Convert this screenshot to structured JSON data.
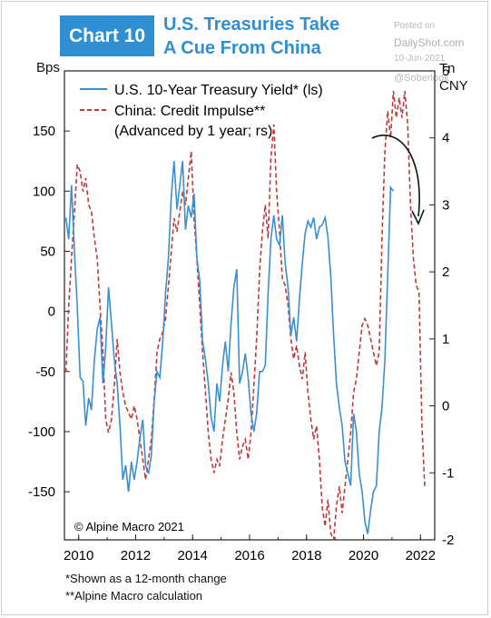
{
  "header": {
    "chart_number": "Chart 10",
    "title_lines": [
      "U.S. Treasuries Take",
      "A Cue From China"
    ]
  },
  "watermark": {
    "posted": "Posted on",
    "site": "DailyShot.com",
    "date": "10-Jun-2021",
    "handle": "@Soberlook"
  },
  "footnotes": [
    "*Shown as a 12-month change",
    "**Alpine Macro calculation"
  ],
  "chart_data": {
    "type": "line",
    "source_note": "© Alpine Macro 2021",
    "y_left_label": "Bps",
    "y_right_label_lines": [
      "Tn",
      "CNY"
    ],
    "x_ticks": [
      "2010",
      "2012",
      "2014",
      "2016",
      "2018",
      "2020",
      "2022"
    ],
    "x_range": [
      2009.5,
      2022.5
    ],
    "y_left_range": [
      -190,
      200
    ],
    "y_left_ticks": [
      150,
      100,
      50,
      0,
      -50,
      -100,
      -150
    ],
    "y_right_range": [
      -2,
      5
    ],
    "y_right_ticks": [
      5,
      4,
      3,
      2,
      1,
      0,
      -1,
      -2
    ],
    "legend_position": "top-left",
    "annotation": "curved arrow pointing down at the China credit impulse peak",
    "series": [
      {
        "name": "U.S. 10-Year Treasury Yield* (ls)",
        "axis": "left",
        "color": "#3b8fd0",
        "style": "solid",
        "points": [
          [
            2009.55,
            78
          ],
          [
            2009.65,
            60
          ],
          [
            2009.75,
            105
          ],
          [
            2009.85,
            50
          ],
          [
            2009.95,
            5
          ],
          [
            2010.05,
            -55
          ],
          [
            2010.15,
            -58
          ],
          [
            2010.25,
            -95
          ],
          [
            2010.35,
            -72
          ],
          [
            2010.45,
            -82
          ],
          [
            2010.55,
            -40
          ],
          [
            2010.65,
            -15
          ],
          [
            2010.75,
            -5
          ],
          [
            2010.85,
            -60
          ],
          [
            2010.95,
            -30
          ],
          [
            2011.05,
            20
          ],
          [
            2011.15,
            -10
          ],
          [
            2011.25,
            -40
          ],
          [
            2011.35,
            -60
          ],
          [
            2011.45,
            -95
          ],
          [
            2011.55,
            -140
          ],
          [
            2011.65,
            -128
          ],
          [
            2011.75,
            -150
          ],
          [
            2011.85,
            -125
          ],
          [
            2011.95,
            -140
          ],
          [
            2012.05,
            -125
          ],
          [
            2012.15,
            -105
          ],
          [
            2012.25,
            -90
          ],
          [
            2012.35,
            -128
          ],
          [
            2012.45,
            -135
          ],
          [
            2012.55,
            -120
          ],
          [
            2012.65,
            -75
          ],
          [
            2012.75,
            -50
          ],
          [
            2012.85,
            -55
          ],
          [
            2012.95,
            -25
          ],
          [
            2013.05,
            15
          ],
          [
            2013.15,
            45
          ],
          [
            2013.25,
            95
          ],
          [
            2013.35,
            125
          ],
          [
            2013.45,
            85
          ],
          [
            2013.55,
            105
          ],
          [
            2013.65,
            125
          ],
          [
            2013.75,
            68
          ],
          [
            2013.85,
            88
          ],
          [
            2013.95,
            78
          ],
          [
            2014.05,
            98
          ],
          [
            2014.15,
            45
          ],
          [
            2014.25,
            25
          ],
          [
            2014.35,
            -25
          ],
          [
            2014.45,
            -40
          ],
          [
            2014.55,
            -60
          ],
          [
            2014.65,
            -88
          ],
          [
            2014.75,
            -100
          ],
          [
            2014.85,
            -60
          ],
          [
            2014.95,
            -75
          ],
          [
            2015.05,
            -45
          ],
          [
            2015.15,
            -25
          ],
          [
            2015.25,
            -50
          ],
          [
            2015.35,
            -10
          ],
          [
            2015.45,
            20
          ],
          [
            2015.55,
            35
          ],
          [
            2015.65,
            -60
          ],
          [
            2015.75,
            -50
          ],
          [
            2015.85,
            -35
          ],
          [
            2015.95,
            -55
          ],
          [
            2016.05,
            -85
          ],
          [
            2016.15,
            -100
          ],
          [
            2016.25,
            -85
          ],
          [
            2016.35,
            -50
          ],
          [
            2016.45,
            -50
          ],
          [
            2016.55,
            -45
          ],
          [
            2016.65,
            15
          ],
          [
            2016.75,
            60
          ],
          [
            2016.85,
            80
          ],
          [
            2016.95,
            60
          ],
          [
            2017.05,
            55
          ],
          [
            2017.15,
            80
          ],
          [
            2017.25,
            40
          ],
          [
            2017.35,
            20
          ],
          [
            2017.45,
            -20
          ],
          [
            2017.55,
            -5
          ],
          [
            2017.65,
            -25
          ],
          [
            2017.75,
            10
          ],
          [
            2017.85,
            40
          ],
          [
            2017.95,
            65
          ],
          [
            2018.05,
            75
          ],
          [
            2018.15,
            70
          ],
          [
            2018.25,
            78
          ],
          [
            2018.35,
            60
          ],
          [
            2018.45,
            70
          ],
          [
            2018.55,
            72
          ],
          [
            2018.65,
            78
          ],
          [
            2018.75,
            62
          ],
          [
            2018.85,
            30
          ],
          [
            2018.95,
            -20
          ],
          [
            2019.05,
            -60
          ],
          [
            2019.15,
            -80
          ],
          [
            2019.25,
            -95
          ],
          [
            2019.35,
            -125
          ],
          [
            2019.45,
            -135
          ],
          [
            2019.55,
            -145
          ],
          [
            2019.65,
            -85
          ],
          [
            2019.75,
            -100
          ],
          [
            2019.85,
            -135
          ],
          [
            2019.95,
            -150
          ],
          [
            2020.05,
            -175
          ],
          [
            2020.15,
            -185
          ],
          [
            2020.25,
            -165
          ],
          [
            2020.35,
            -150
          ],
          [
            2020.45,
            -145
          ],
          [
            2020.55,
            -100
          ],
          [
            2020.65,
            -80
          ],
          [
            2020.75,
            -40
          ],
          [
            2020.85,
            30
          ],
          [
            2020.95,
            103
          ],
          [
            2021.05,
            100
          ]
        ]
      },
      {
        "name": "China: Credit Impulse**",
        "name_line2": "(Advanced by 1 year; rs)",
        "axis": "right",
        "color": "#c0393c",
        "style": "dashed",
        "points": [
          [
            2009.55,
            0.5
          ],
          [
            2009.65,
            1.5
          ],
          [
            2009.75,
            2.2
          ],
          [
            2009.85,
            2.9
          ],
          [
            2009.95,
            3.6
          ],
          [
            2010.05,
            3.5
          ],
          [
            2010.15,
            3.2
          ],
          [
            2010.25,
            3.4
          ],
          [
            2010.35,
            3.0
          ],
          [
            2010.45,
            2.9
          ],
          [
            2010.55,
            2.5
          ],
          [
            2010.65,
            2.2
          ],
          [
            2010.75,
            1.5
          ],
          [
            2010.85,
            0.8
          ],
          [
            2010.95,
            -0.2
          ],
          [
            2011.05,
            -0.4
          ],
          [
            2011.15,
            -0.2
          ],
          [
            2011.25,
            0.3
          ],
          [
            2011.35,
            1.0
          ],
          [
            2011.45,
            0.5
          ],
          [
            2011.55,
            0.2
          ],
          [
            2011.65,
            0.0
          ],
          [
            2011.75,
            -0.1
          ],
          [
            2011.85,
            -0.2
          ],
          [
            2011.95,
            0.0
          ],
          [
            2012.05,
            -0.2
          ],
          [
            2012.15,
            -0.5
          ],
          [
            2012.25,
            -0.8
          ],
          [
            2012.35,
            -1.1
          ],
          [
            2012.45,
            -0.8
          ],
          [
            2012.55,
            -0.5
          ],
          [
            2012.65,
            0.1
          ],
          [
            2012.75,
            0.8
          ],
          [
            2012.85,
            1.0
          ],
          [
            2012.95,
            1.1
          ],
          [
            2013.05,
            1.3
          ],
          [
            2013.15,
            1.8
          ],
          [
            2013.25,
            2.3
          ],
          [
            2013.35,
            2.8
          ],
          [
            2013.45,
            2.6
          ],
          [
            2013.55,
            2.9
          ],
          [
            2013.65,
            3.2
          ],
          [
            2013.75,
            3.0
          ],
          [
            2013.85,
            3.4
          ],
          [
            2013.95,
            3.8
          ],
          [
            2014.05,
            2.8
          ],
          [
            2014.15,
            2.2
          ],
          [
            2014.25,
            1.5
          ],
          [
            2014.35,
            0.8
          ],
          [
            2014.45,
            0.2
          ],
          [
            2014.55,
            -0.4
          ],
          [
            2014.65,
            -0.8
          ],
          [
            2014.75,
            -1.0
          ],
          [
            2014.85,
            -0.8
          ],
          [
            2014.95,
            -0.9
          ],
          [
            2015.05,
            -0.5
          ],
          [
            2015.15,
            -0.2
          ],
          [
            2015.25,
            0.1
          ],
          [
            2015.35,
            0.5
          ],
          [
            2015.45,
            0.2
          ],
          [
            2015.55,
            -0.4
          ],
          [
            2015.65,
            -0.8
          ],
          [
            2015.75,
            -0.6
          ],
          [
            2015.85,
            -0.5
          ],
          [
            2015.95,
            -0.8
          ],
          [
            2016.05,
            -0.4
          ],
          [
            2016.15,
            0.3
          ],
          [
            2016.25,
            1.0
          ],
          [
            2016.35,
            2.0
          ],
          [
            2016.45,
            2.6
          ],
          [
            2016.55,
            3.0
          ],
          [
            2016.65,
            2.5
          ],
          [
            2016.75,
            3.7
          ],
          [
            2016.85,
            4.2
          ],
          [
            2016.95,
            3.2
          ],
          [
            2017.05,
            2.6
          ],
          [
            2017.15,
            1.9
          ],
          [
            2017.25,
            1.8
          ],
          [
            2017.35,
            1.5
          ],
          [
            2017.45,
            1.0
          ],
          [
            2017.55,
            0.7
          ],
          [
            2017.65,
            0.9
          ],
          [
            2017.75,
            0.6
          ],
          [
            2017.85,
            0.4
          ],
          [
            2017.95,
            0.8
          ],
          [
            2018.05,
            0.2
          ],
          [
            2018.15,
            -0.2
          ],
          [
            2018.25,
            -0.5
          ],
          [
            2018.35,
            -0.3
          ],
          [
            2018.45,
            -0.8
          ],
          [
            2018.55,
            -1.5
          ],
          [
            2018.65,
            -1.8
          ],
          [
            2018.75,
            -1.4
          ],
          [
            2018.85,
            -1.9
          ],
          [
            2018.95,
            -2.0
          ],
          [
            2019.05,
            -1.5
          ],
          [
            2019.15,
            -1.2
          ],
          [
            2019.25,
            -1.6
          ],
          [
            2019.35,
            -1.2
          ],
          [
            2019.45,
            -0.8
          ],
          [
            2019.55,
            -0.4
          ],
          [
            2019.65,
            0.2
          ],
          [
            2019.75,
            0.4
          ],
          [
            2019.85,
            0.8
          ],
          [
            2019.95,
            1.2
          ],
          [
            2020.05,
            1.3
          ],
          [
            2020.15,
            1.2
          ],
          [
            2020.25,
            1.0
          ],
          [
            2020.35,
            0.8
          ],
          [
            2020.45,
            0.6
          ],
          [
            2020.55,
            0.8
          ],
          [
            2020.65,
            2.5
          ],
          [
            2020.75,
            3.8
          ],
          [
            2020.85,
            4.4
          ],
          [
            2020.95,
            4.0
          ],
          [
            2021.05,
            4.7
          ],
          [
            2021.15,
            4.3
          ],
          [
            2021.25,
            4.6
          ],
          [
            2021.35,
            4.3
          ],
          [
            2021.45,
            4.7
          ],
          [
            2021.55,
            4.2
          ],
          [
            2021.65,
            3.0
          ],
          [
            2021.75,
            2.2
          ],
          [
            2021.85,
            1.8
          ],
          [
            2021.95,
            1.7
          ],
          [
            2022.05,
            -0.3
          ],
          [
            2022.15,
            -1.2
          ]
        ]
      }
    ]
  }
}
